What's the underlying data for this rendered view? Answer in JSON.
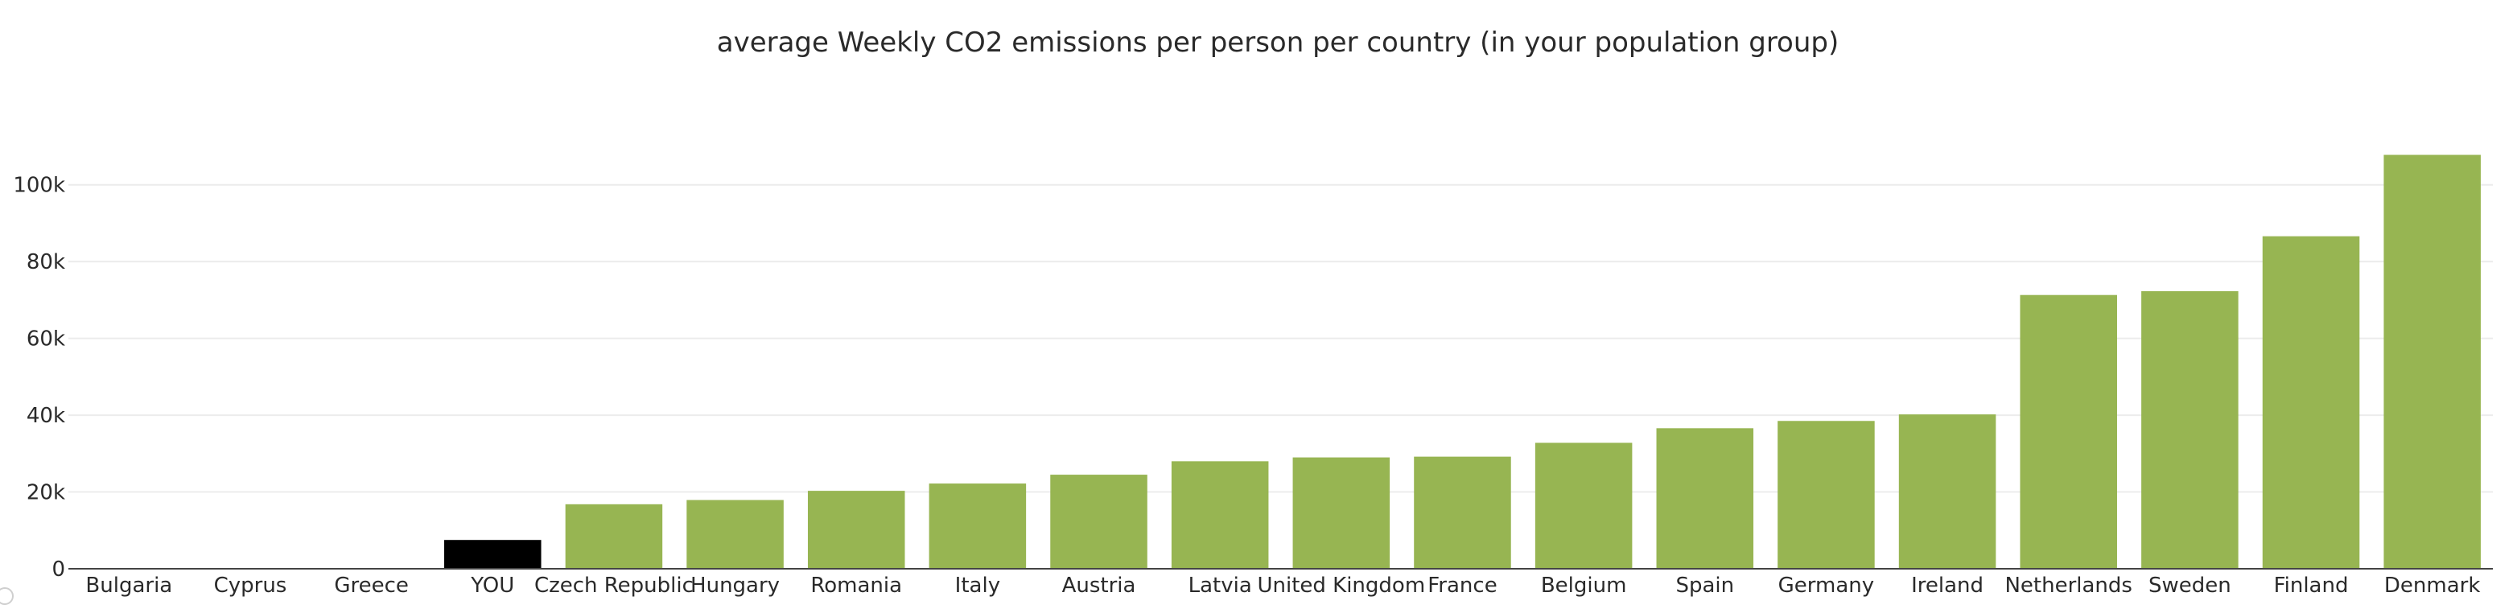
{
  "chart_data": {
    "type": "bar",
    "title": "average Weekly CO2 emissions per person per country (in your population group)",
    "xlabel": "",
    "ylabel": "",
    "ylim": [
      0,
      110000
    ],
    "yticks": [
      0,
      20000,
      40000,
      60000,
      80000,
      100000
    ],
    "ytick_labels": [
      "0",
      "20k",
      "40k",
      "60k",
      "80k",
      "100k"
    ],
    "grid": true,
    "legend": "none",
    "categories": [
      "Bulgaria",
      "Cyprus",
      "Greece",
      "YOU",
      "Czech Republic",
      "Hungary",
      "Romania",
      "Italy",
      "Austria",
      "Latvia",
      "United Kingdom",
      "France",
      "Belgium",
      "Spain",
      "Germany",
      "Ireland",
      "Netherlands",
      "Sweden",
      "Finland",
      "Denmark"
    ],
    "values": [
      0,
      0,
      0,
      7500,
      16800,
      17900,
      20300,
      22200,
      24500,
      28000,
      29000,
      29200,
      32800,
      36600,
      38500,
      40200,
      71300,
      72300,
      86600,
      107800
    ],
    "colors": [
      "#97b552",
      "#97b552",
      "#97b552",
      "#000000",
      "#97b552",
      "#97b552",
      "#97b552",
      "#97b552",
      "#97b552",
      "#97b552",
      "#97b552",
      "#97b552",
      "#97b552",
      "#97b552",
      "#97b552",
      "#97b552",
      "#97b552",
      "#97b552",
      "#97b552",
      "#97b552"
    ]
  },
  "style": {
    "bar_color": "#97b552",
    "highlight_color": "#000000",
    "grid_color": "#ececec",
    "axis_color": "#444444"
  }
}
